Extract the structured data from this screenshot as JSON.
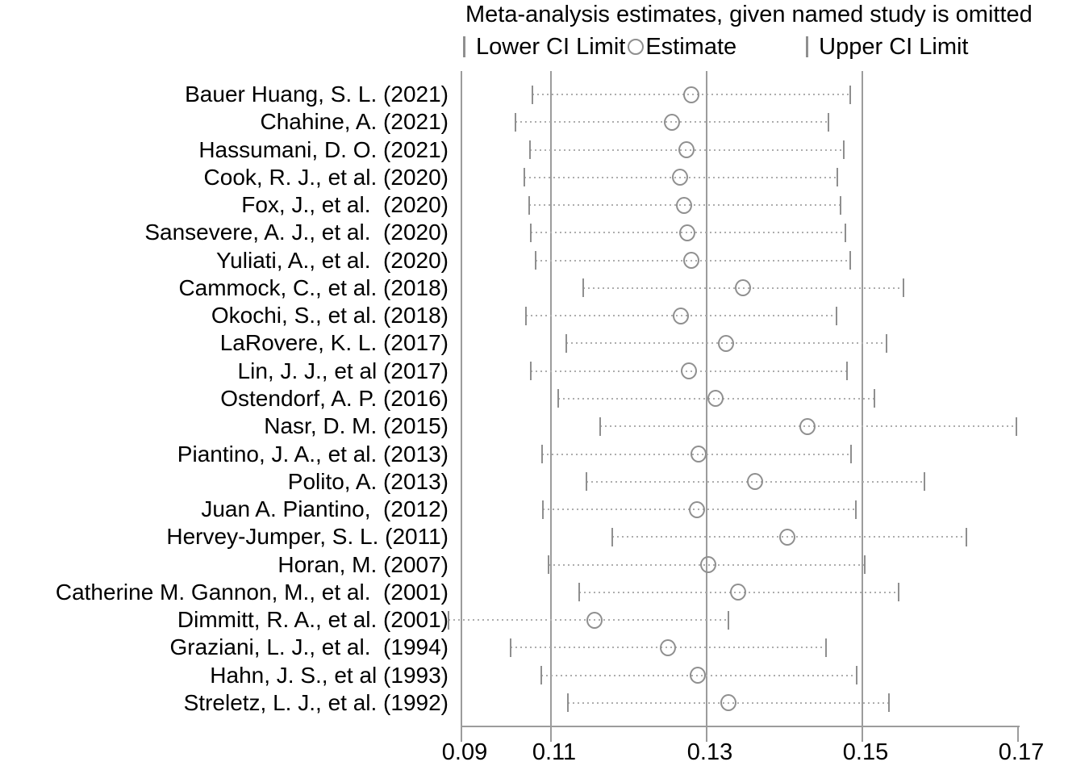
{
  "chart_data": {
    "type": "forest",
    "title": "Meta-analysis estimates, given named study is omitted",
    "legend": {
      "lower": "Lower CI Limit",
      "estimate": "Estimate",
      "upper": "Upper CI Limit"
    },
    "x_axis": {
      "tick_labels": [
        "0.09",
        "0.11",
        "0.13",
        "0.15",
        "0.17"
      ],
      "tick_values": [
        0.09,
        0.11,
        0.13,
        0.15,
        0.17
      ],
      "gridline_values": [
        0.11,
        0.13,
        0.15
      ],
      "xlim": [
        0.0985,
        0.1703
      ]
    },
    "studies": [
      {
        "label": "Bauer Huang, S. L. (2021)",
        "lower": 0.1076,
        "estimate": 0.128,
        "upper": 0.1484
      },
      {
        "label": "Chahine, A. (2021)",
        "lower": 0.1054,
        "estimate": 0.1255,
        "upper": 0.1456
      },
      {
        "label": "Hassumani, D. O. (2021)",
        "lower": 0.1073,
        "estimate": 0.1274,
        "upper": 0.1476
      },
      {
        "label": "Cook, R. J., et al. (2020)",
        "lower": 0.1066,
        "estimate": 0.1266,
        "upper": 0.1468
      },
      {
        "label": "Fox, J., et al.  (2020)",
        "lower": 0.1072,
        "estimate": 0.1271,
        "upper": 0.1472
      },
      {
        "label": "Sansevere, A. J., et al.  (2020)",
        "lower": 0.1074,
        "estimate": 0.1275,
        "upper": 0.1478
      },
      {
        "label": "Yuliati, A., et al.  (2020)",
        "lower": 0.108,
        "estimate": 0.128,
        "upper": 0.1484
      },
      {
        "label": "Cammock, C., et al. (2018)",
        "lower": 0.1141,
        "estimate": 0.1347,
        "upper": 0.1553
      },
      {
        "label": "Okochi, S., et al. (2018)",
        "lower": 0.1068,
        "estimate": 0.1267,
        "upper": 0.1467
      },
      {
        "label": "LaRovere, K. L. (2017)",
        "lower": 0.112,
        "estimate": 0.1325,
        "upper": 0.1531
      },
      {
        "label": "Lin, J. J., et al (2017)",
        "lower": 0.1074,
        "estimate": 0.1277,
        "upper": 0.148
      },
      {
        "label": "Ostendorf, A. P. (2016)",
        "lower": 0.1109,
        "estimate": 0.1311,
        "upper": 0.1516
      },
      {
        "label": "Nasr, D. M. (2015)",
        "lower": 0.1163,
        "estimate": 0.143,
        "upper": 0.1698
      },
      {
        "label": "Piantino, J. A., et al. (2013)",
        "lower": 0.1089,
        "estimate": 0.129,
        "upper": 0.1486
      },
      {
        "label": "Polito, A. (2013)",
        "lower": 0.1146,
        "estimate": 0.1362,
        "upper": 0.158
      },
      {
        "label": "Juan A. Piantino,  (2012)",
        "lower": 0.109,
        "estimate": 0.1288,
        "upper": 0.1492
      },
      {
        "label": "Hervey-Jumper, S. L. (2011)",
        "lower": 0.1179,
        "estimate": 0.1404,
        "upper": 0.1634
      },
      {
        "label": "Horan, M. (2007)",
        "lower": 0.1097,
        "estimate": 0.1302,
        "upper": 0.1503
      },
      {
        "label": "Catherine M. Gannon, M., et al.  (2001)",
        "lower": 0.1136,
        "estimate": 0.134,
        "upper": 0.1547
      },
      {
        "label": "Dimmitt, R. A., et al. (2001)",
        "lower": 0.0968,
        "estimate": 0.1156,
        "upper": 0.1328
      },
      {
        "label": "Graziani, L. J., et al.  (1994)",
        "lower": 0.1048,
        "estimate": 0.125,
        "upper": 0.1453
      },
      {
        "label": "Hahn, J. S., et al (1993)",
        "lower": 0.1088,
        "estimate": 0.1289,
        "upper": 0.1493
      },
      {
        "label": "Streletz, L. J., et al. (1992)",
        "lower": 0.1122,
        "estimate": 0.1328,
        "upper": 0.1534
      }
    ]
  }
}
